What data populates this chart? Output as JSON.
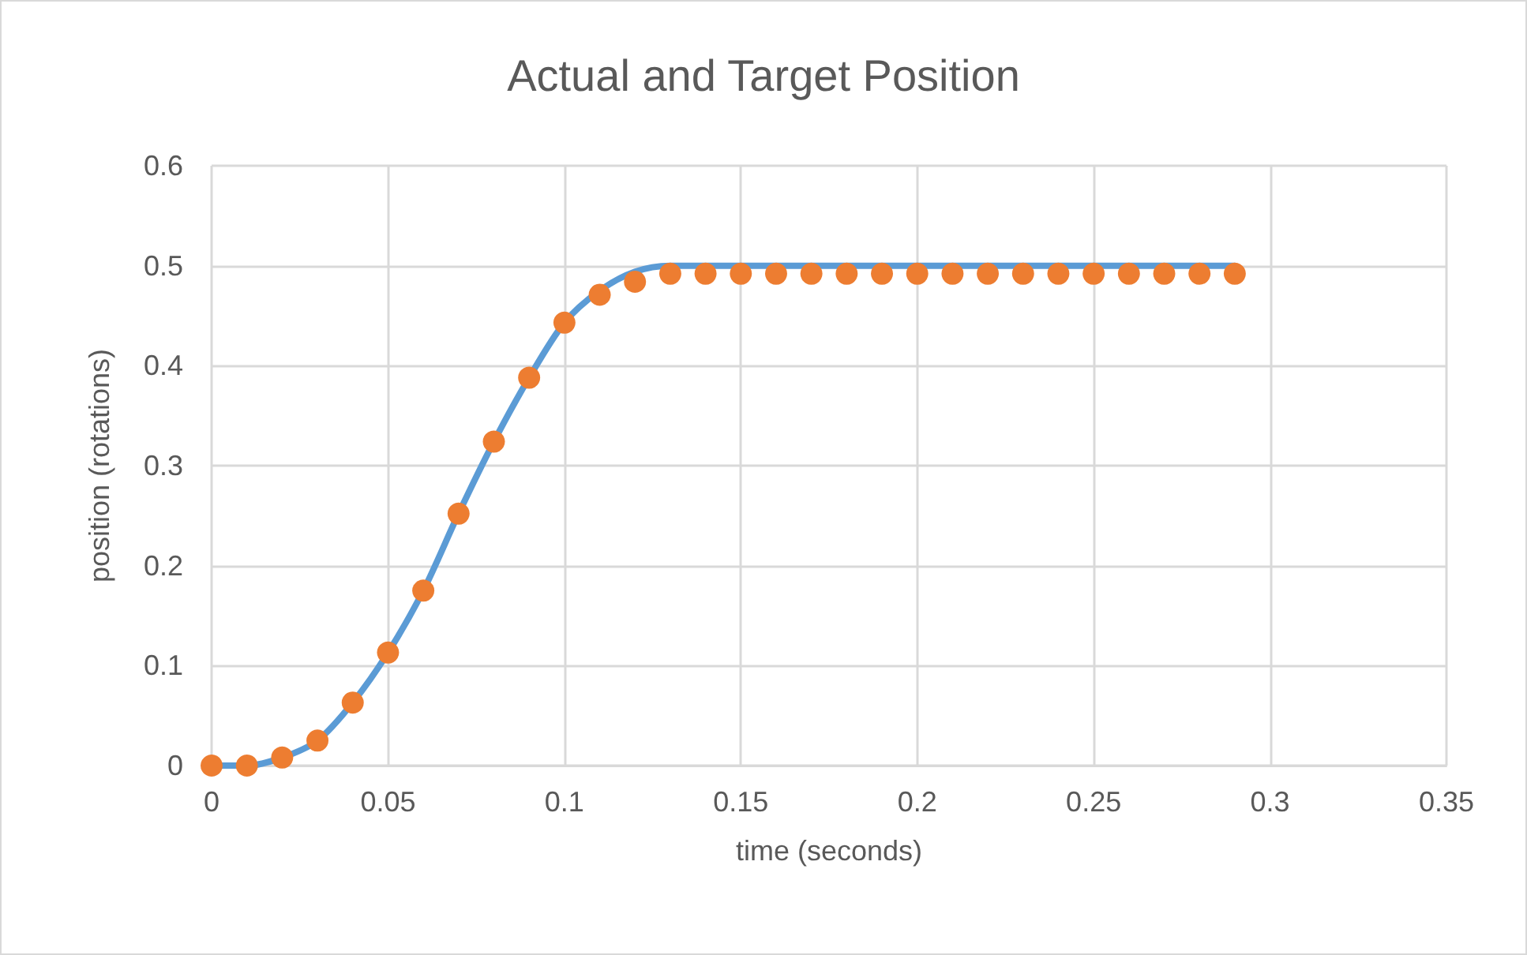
{
  "chart_data": {
    "type": "line",
    "title": "Actual and Target Position",
    "xlabel": "time (seconds)",
    "ylabel": "position (rotations)",
    "x": [
      0,
      0.01,
      0.02,
      0.03,
      0.04,
      0.05,
      0.06,
      0.07,
      0.08,
      0.09,
      0.1,
      0.11,
      0.12,
      0.13,
      0.14,
      0.15,
      0.16,
      0.17,
      0.18,
      0.19,
      0.2,
      0.21,
      0.22,
      0.23,
      0.24,
      0.25,
      0.26,
      0.27,
      0.28,
      0.29
    ],
    "series": [
      {
        "color": "#5b9bd5",
        "marker": "none",
        "values": [
          0,
          0,
          0.008,
          0.025,
          0.063,
          0.113,
          0.175,
          0.252,
          0.324,
          0.388,
          0.443,
          0.475,
          0.494,
          0.5,
          0.5,
          0.5,
          0.5,
          0.5,
          0.5,
          0.5,
          0.5,
          0.5,
          0.5,
          0.5,
          0.5,
          0.5,
          0.5,
          0.5,
          0.5,
          0.5
        ]
      },
      {
        "type": "scatter",
        "color": "#ed7d31",
        "marker": "circle",
        "values": [
          0,
          0,
          0.008,
          0.025,
          0.063,
          0.113,
          0.175,
          0.252,
          0.324,
          0.388,
          0.443,
          0.471,
          0.484,
          0.492,
          0.492,
          0.492,
          0.492,
          0.492,
          0.492,
          0.492,
          0.492,
          0.492,
          0.492,
          0.492,
          0.492,
          0.492,
          0.492,
          0.492,
          0.492,
          0.492
        ]
      }
    ],
    "xlim": [
      0,
      0.35
    ],
    "xticks": [
      0,
      0.05,
      0.1,
      0.15,
      0.2,
      0.25,
      0.3,
      0.35
    ],
    "ylim": [
      0,
      0.6
    ],
    "yticks": [
      0,
      0.1,
      0.2,
      0.3,
      0.4,
      0.5,
      0.6
    ],
    "grid": true
  }
}
